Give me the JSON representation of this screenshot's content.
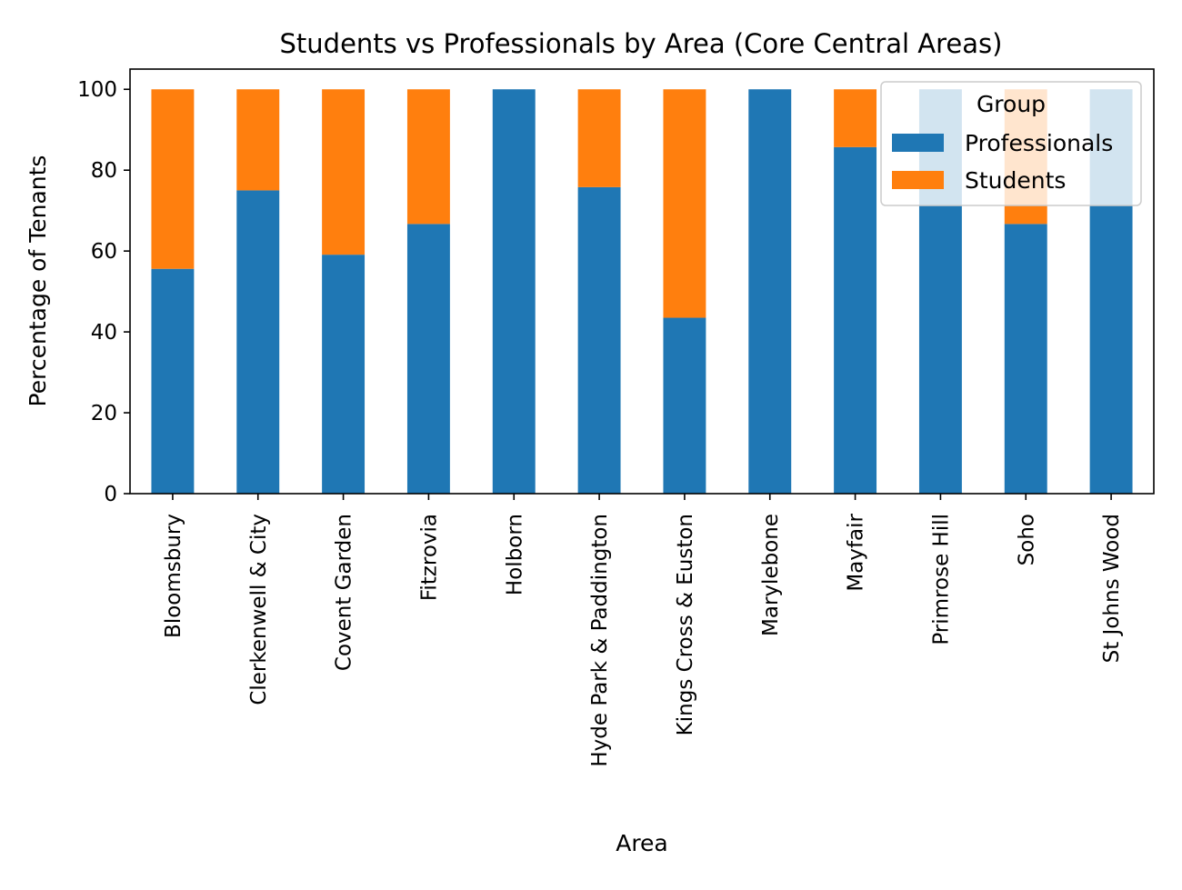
{
  "chart_data": {
    "type": "bar",
    "stacked": true,
    "title": "Students vs Professionals by Area (Core Central Areas)",
    "xlabel": "Area",
    "ylabel": "Percentage of Tenants",
    "ylim": [
      0,
      105
    ],
    "yticks": [
      0,
      20,
      40,
      60,
      80,
      100
    ],
    "grid": false,
    "categories": [
      "Bloomsbury",
      "Clerkenwell & City",
      "Covent Garden",
      "Fitzrovia",
      "Holborn",
      "Hyde Park & Paddington",
      "Kings Cross & Euston",
      "Marylebone",
      "Mayfair",
      "Primrose Hill",
      "Soho",
      "St Johns Wood"
    ],
    "series": [
      {
        "name": "Professionals",
        "color": "#1f77b4",
        "values": [
          55.6,
          75.0,
          59.1,
          66.7,
          100,
          75.8,
          43.5,
          100,
          85.7,
          100,
          66.7,
          100
        ]
      },
      {
        "name": "Students",
        "color": "#ff7f0e",
        "values": [
          44.4,
          25.0,
          40.9,
          33.3,
          0,
          24.2,
          56.5,
          0,
          14.3,
          0,
          33.3,
          0
        ]
      }
    ],
    "legend": {
      "title": "Group",
      "placement": "top-right"
    }
  }
}
